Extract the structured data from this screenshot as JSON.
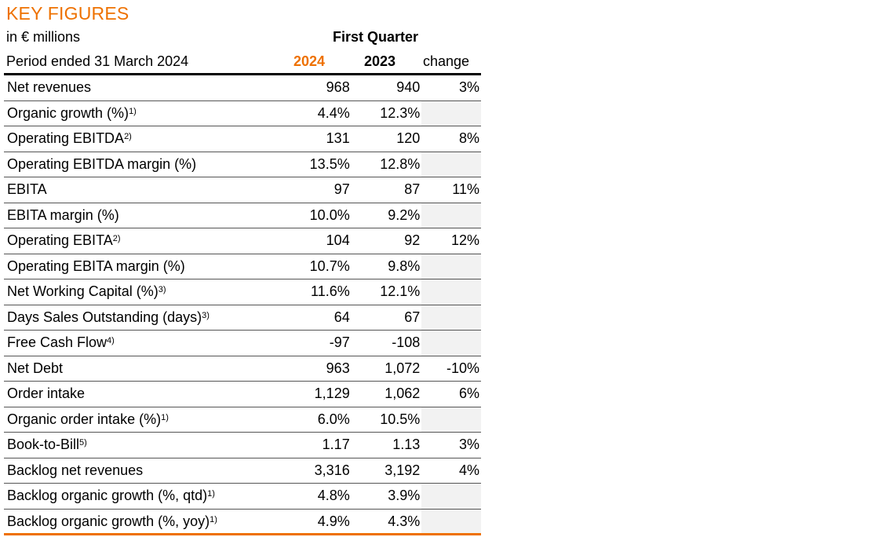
{
  "title": "KEY FIGURES",
  "unit": "in € millions",
  "period_heading": "First Quarter",
  "header": {
    "label": "Period ended 31 March 2024",
    "col_2024": "2024",
    "col_2023": "2023",
    "col_change": "change"
  },
  "colors": {
    "accent": "#ee7100",
    "empty_cell": "#f2f2f2"
  },
  "rows": [
    {
      "label": "Net revenues",
      "sup": "",
      "v2024": "968",
      "v2023": "940",
      "change": "3%"
    },
    {
      "label": "Organic growth (%)",
      "sup": "1)",
      "v2024": "4.4%",
      "v2023": "12.3%",
      "change": ""
    },
    {
      "label": "Operating EBITDA",
      "sup": "2)",
      "v2024": "131",
      "v2023": "120",
      "change": "8%"
    },
    {
      "label": "Operating EBITDA margin (%)",
      "sup": "",
      "v2024": "13.5%",
      "v2023": "12.8%",
      "change": ""
    },
    {
      "label": "EBITA",
      "sup": "",
      "v2024": "97",
      "v2023": "87",
      "change": "11%"
    },
    {
      "label": "EBITA margin (%)",
      "sup": "",
      "v2024": "10.0%",
      "v2023": "9.2%",
      "change": ""
    },
    {
      "label": "Operating EBITA",
      "sup": "2)",
      "v2024": "104",
      "v2023": "92",
      "change": "12%"
    },
    {
      "label": "Operating EBITA margin (%)",
      "sup": "",
      "v2024": "10.7%",
      "v2023": "9.8%",
      "change": ""
    },
    {
      "label": "Net Working Capital (%)",
      "sup": "3)",
      "v2024": "11.6%",
      "v2023": "12.1%",
      "change": ""
    },
    {
      "label": "Days Sales Outstanding (days)",
      "sup": "3)",
      "v2024": "64",
      "v2023": "67",
      "change": ""
    },
    {
      "label": "Free Cash Flow",
      "sup": "4)",
      "v2024": "-97",
      "v2023": "-108",
      "change": ""
    },
    {
      "label": "Net Debt",
      "sup": "",
      "v2024": "963",
      "v2023": "1,072",
      "change": "-10%"
    },
    {
      "label": "Order intake",
      "sup": "",
      "v2024": "1,129",
      "v2023": "1,062",
      "change": "6%"
    },
    {
      "label": "Organic order intake (%)",
      "sup": "1)",
      "v2024": "6.0%",
      "v2023": "10.5%",
      "change": ""
    },
    {
      "label": "Book-to-Bill",
      "sup": "5)",
      "v2024": "1.17",
      "v2023": "1.13",
      "change": "3%"
    },
    {
      "label": "Backlog net revenues",
      "sup": "",
      "v2024": "3,316",
      "v2023": "3,192",
      "change": "4%"
    },
    {
      "label": "Backlog organic growth (%, qtd)",
      "sup": "1)",
      "v2024": "4.8%",
      "v2023": "3.9%",
      "change": ""
    },
    {
      "label": "Backlog organic growth (%, yoy)",
      "sup": "1)",
      "v2024": "4.9%",
      "v2023": "4.3%",
      "change": ""
    }
  ]
}
